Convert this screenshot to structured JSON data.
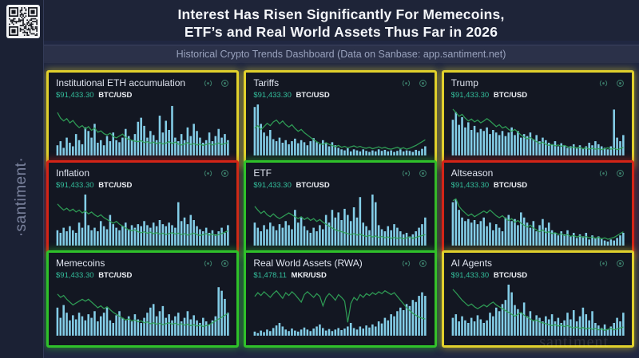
{
  "header": {
    "title_line1": "Interest Has Risen Significantly For Memecoins,",
    "title_line2": "ETF’s and Real World Assets Thus Far in 2026",
    "subtitle": "Historical Crypto Trends Dashboard (Data on Sanbase: app.santiment.net)"
  },
  "sidebar": {
    "brand": "·santiment·"
  },
  "watermark": "santiment",
  "colors": {
    "page_bg": "#202741",
    "panel_bg": "#131722",
    "accent_yellow": "#e0d02c",
    "accent_red": "#d42417",
    "accent_green": "#2fc12a",
    "bar_color": "#84cee8",
    "line_color": "#2fa157",
    "price_color": "#33bf9c"
  },
  "chart_data": {
    "note": "see panels[].bars (social-volume bars, % of max) and panels[].line (price line, % of max)"
  },
  "panels": [
    {
      "title": "Institutional ETH accumulation",
      "price": "$91,433.30",
      "unit": "BTC/USD",
      "border": "yellow",
      "icons": [
        "live-icon",
        "settings-icon"
      ],
      "type": "bar+line",
      "bars": [
        20,
        28,
        15,
        35,
        25,
        18,
        42,
        30,
        22,
        55,
        48,
        35,
        62,
        25,
        30,
        20,
        38,
        28,
        45,
        30,
        26,
        35,
        52,
        38,
        30,
        42,
        66,
        74,
        58,
        35,
        48,
        40,
        30,
        78,
        45,
        68,
        50,
        97,
        35,
        28,
        42,
        30,
        55,
        38,
        62,
        48,
        35,
        25,
        30,
        45,
        28,
        38,
        52,
        35,
        42,
        30
      ],
      "line": [
        88,
        76,
        70,
        75,
        66,
        71,
        62,
        56,
        60,
        53,
        58,
        50,
        55,
        46,
        49,
        43,
        40,
        44,
        37,
        34,
        38,
        42,
        35,
        31,
        29,
        27,
        26,
        28,
        24,
        26,
        23,
        25,
        22,
        24,
        21,
        23,
        26,
        22,
        25,
        21,
        19,
        21,
        24,
        20,
        22,
        19,
        21,
        18,
        20,
        22,
        19,
        21,
        23,
        20,
        22,
        24
      ]
    },
    {
      "title": "Tariffs",
      "price": "$91,433.30",
      "unit": "BTC/USD",
      "border": "yellow",
      "icons": [
        "live-icon",
        "settings-icon"
      ],
      "type": "bar+line",
      "bars": [
        95,
        100,
        62,
        45,
        38,
        50,
        32,
        28,
        35,
        25,
        30,
        22,
        28,
        33,
        24,
        30,
        26,
        20,
        28,
        34,
        26,
        22,
        30,
        24,
        18,
        26,
        20,
        15,
        12,
        10,
        14,
        8,
        12,
        10,
        8,
        12,
        9,
        7,
        10,
        8,
        12,
        9,
        11,
        8,
        10,
        7,
        9,
        12,
        8,
        10,
        9,
        7,
        11,
        9,
        13,
        18
      ],
      "line": [
        55,
        60,
        52,
        58,
        65,
        60,
        68,
        72,
        64,
        70,
        62,
        57,
        62,
        54,
        48,
        52,
        45,
        40,
        35,
        30,
        26,
        22,
        20,
        24,
        20,
        18,
        15,
        18,
        14,
        16,
        13,
        15,
        17,
        14,
        16,
        13,
        12,
        14,
        11,
        13,
        15,
        12,
        14,
        11,
        10,
        12,
        14,
        11,
        13,
        10,
        12,
        15,
        18,
        22,
        26,
        30
      ]
    },
    {
      "title": "Trump",
      "price": "$91,433.30",
      "unit": "BTC/USD",
      "border": "yellow",
      "icons": [
        "live-icon",
        "settings-icon"
      ],
      "type": "bar+line",
      "bars": [
        70,
        85,
        60,
        75,
        55,
        65,
        50,
        58,
        45,
        52,
        48,
        55,
        42,
        50,
        45,
        40,
        48,
        38,
        45,
        55,
        40,
        48,
        35,
        42,
        38,
        45,
        32,
        40,
        28,
        35,
        30,
        25,
        22,
        28,
        18,
        24,
        20,
        15,
        18,
        22,
        16,
        20,
        14,
        18,
        25,
        20,
        28,
        22,
        18,
        15,
        12,
        18,
        90,
        35,
        28,
        40
      ],
      "line": [
        95,
        88,
        80,
        84,
        76,
        70,
        74,
        68,
        72,
        66,
        70,
        75,
        70,
        64,
        58,
        62,
        55,
        58,
        52,
        48,
        52,
        46,
        40,
        36,
        32,
        35,
        30,
        26,
        22,
        25,
        20,
        18,
        20,
        17,
        19,
        16,
        18,
        15,
        13,
        15,
        12,
        14,
        11,
        13,
        10,
        12,
        10,
        11,
        9,
        11,
        13,
        10,
        12,
        9,
        11,
        14
      ]
    },
    {
      "title": "Inflation",
      "price": "$91,433.30",
      "unit": "BTC/USD",
      "border": "red",
      "icons": [
        "live-icon",
        "settings-icon"
      ],
      "type": "bar+line",
      "bars": [
        30,
        25,
        35,
        28,
        38,
        30,
        25,
        45,
        35,
        100,
        40,
        30,
        35,
        28,
        48,
        38,
        32,
        60,
        42,
        35,
        30,
        38,
        45,
        32,
        40,
        35,
        42,
        38,
        48,
        40,
        35,
        45,
        38,
        50,
        42,
        38,
        45,
        40,
        35,
        85,
        48,
        55,
        42,
        60,
        50,
        38,
        32,
        28,
        35,
        25,
        30,
        22,
        28,
        35,
        25,
        40
      ],
      "line": [
        85,
        78,
        72,
        76,
        70,
        74,
        68,
        72,
        66,
        70,
        64,
        68,
        62,
        58,
        62,
        56,
        52,
        48,
        44,
        48,
        42,
        38,
        34,
        30,
        28,
        30,
        26,
        24,
        26,
        23,
        25,
        22,
        24,
        21,
        23,
        20,
        22,
        24,
        21,
        23,
        20,
        22,
        19,
        21,
        23,
        20,
        18,
        20,
        22,
        19,
        21,
        18,
        20,
        22,
        25,
        28
      ]
    },
    {
      "title": "ETF",
      "price": "$91,433.30",
      "unit": "BTC/USD",
      "border": "green",
      "icons": [
        "live-icon",
        "settings-icon"
      ],
      "type": "bar+line",
      "bars": [
        45,
        35,
        28,
        40,
        32,
        45,
        38,
        30,
        42,
        35,
        48,
        40,
        32,
        70,
        45,
        55,
        38,
        30,
        25,
        35,
        28,
        40,
        32,
        60,
        45,
        70,
        55,
        65,
        50,
        72,
        60,
        48,
        75,
        55,
        95,
        45,
        38,
        30,
        100,
        85,
        40,
        32,
        28,
        38,
        30,
        42,
        35,
        28,
        22,
        25,
        18,
        22,
        28,
        35,
        42,
        55
      ],
      "line": [
        80,
        72,
        65,
        70,
        62,
        58,
        64,
        58,
        54,
        58,
        62,
        66,
        62,
        58,
        54,
        58,
        52,
        56,
        50,
        54,
        48,
        52,
        46,
        42,
        38,
        34,
        30,
        28,
        26,
        24,
        22,
        20,
        22,
        19,
        21,
        18,
        16,
        18,
        15,
        17,
        14,
        16,
        13,
        15,
        12,
        14,
        12,
        13,
        11,
        13,
        15,
        12,
        14,
        16,
        18,
        20
      ]
    },
    {
      "title": "Altseason",
      "price": "$91,433.30",
      "unit": "BTC/USD",
      "border": "red",
      "icons": [
        "live-icon",
        "settings-icon"
      ],
      "type": "bar+line",
      "bars": [
        85,
        90,
        70,
        55,
        48,
        52,
        45,
        50,
        42,
        48,
        55,
        38,
        45,
        30,
        42,
        35,
        28,
        55,
        60,
        48,
        52,
        40,
        65,
        55,
        45,
        35,
        48,
        28,
        40,
        52,
        35,
        45,
        30,
        25,
        20,
        28,
        22,
        30,
        18,
        25,
        15,
        22,
        18,
        25,
        12,
        20,
        15,
        18,
        14,
        10,
        8,
        12,
        10,
        15,
        20,
        25
      ],
      "line": [
        92,
        96,
        80,
        72,
        66,
        60,
        64,
        58,
        62,
        66,
        70,
        66,
        72,
        66,
        60,
        56,
        60,
        54,
        50,
        54,
        46,
        50,
        44,
        40,
        36,
        40,
        34,
        30,
        26,
        30,
        24,
        26,
        22,
        24,
        20,
        22,
        18,
        20,
        16,
        18,
        15,
        17,
        14,
        16,
        13,
        15,
        12,
        14,
        11,
        13,
        10,
        12,
        14,
        18,
        22,
        26
      ]
    },
    {
      "title": "Memecoins",
      "price": "$91,433.30",
      "unit": "BTC/USD",
      "border": "green",
      "icons": [
        "live-icon",
        "settings-icon"
      ],
      "type": "bar+line",
      "bars": [
        55,
        35,
        60,
        45,
        30,
        40,
        32,
        45,
        38,
        30,
        42,
        35,
        48,
        28,
        38,
        45,
        55,
        30,
        25,
        40,
        48,
        35,
        30,
        38,
        28,
        42,
        32,
        25,
        35,
        45,
        55,
        62,
        38,
        48,
        58,
        35,
        42,
        30,
        38,
        45,
        28,
        35,
        48,
        32,
        40,
        30,
        25,
        35,
        28,
        22,
        30,
        38,
        95,
        88,
        72,
        45
      ],
      "line": [
        85,
        78,
        82,
        74,
        68,
        62,
        66,
        70,
        74,
        70,
        74,
        68,
        62,
        56,
        60,
        54,
        58,
        52,
        46,
        42,
        38,
        34,
        30,
        32,
        28,
        30,
        26,
        28,
        24,
        26,
        22,
        24,
        21,
        23,
        20,
        22,
        24,
        21,
        23,
        20,
        22,
        19,
        21,
        18,
        20,
        17,
        19,
        16,
        18,
        20,
        24,
        28,
        32,
        36,
        40,
        44
      ]
    },
    {
      "title": "Real World Assets (RWA)",
      "price": "$1,478.11",
      "unit": "MKR/USD",
      "border": "green",
      "icons": [
        "live-icon",
        "settings-icon"
      ],
      "type": "bar+line",
      "bars": [
        8,
        5,
        10,
        7,
        12,
        9,
        15,
        20,
        25,
        18,
        12,
        9,
        14,
        10,
        8,
        12,
        16,
        12,
        9,
        14,
        18,
        22,
        15,
        10,
        13,
        9,
        12,
        15,
        11,
        14,
        18,
        25,
        15,
        12,
        18,
        14,
        20,
        16,
        22,
        18,
        28,
        24,
        35,
        30,
        42,
        38,
        48,
        55,
        50,
        62,
        58,
        70,
        66,
        78,
        85,
        78
      ],
      "line": [
        80,
        88,
        82,
        90,
        84,
        78,
        86,
        92,
        84,
        76,
        88,
        82,
        90,
        84,
        76,
        68,
        84,
        90,
        84,
        78,
        86,
        80,
        60,
        78,
        86,
        80,
        72,
        84,
        78,
        70,
        25,
        65,
        78,
        72,
        84,
        78,
        86,
        82,
        88,
        84,
        90,
        86,
        92,
        88,
        84,
        88,
        80,
        72,
        64,
        56,
        50,
        44,
        40,
        36,
        34,
        32
      ]
    },
    {
      "title": "AI Agents",
      "price": "$91,433.30",
      "unit": "BTC/USD",
      "border": "yellow",
      "icons": [
        "live-icon",
        "settings-icon"
      ],
      "type": "bar+line",
      "bars": [
        35,
        42,
        28,
        38,
        30,
        25,
        35,
        28,
        40,
        32,
        25,
        30,
        45,
        38,
        55,
        48,
        62,
        70,
        100,
        85,
        60,
        52,
        45,
        65,
        38,
        48,
        30,
        40,
        35,
        28,
        38,
        32,
        42,
        28,
        35,
        25,
        30,
        45,
        32,
        50,
        28,
        38,
        55,
        42,
        30,
        48,
        25,
        20,
        15,
        22,
        12,
        18,
        25,
        35,
        28,
        45
      ],
      "line": [
        95,
        88,
        80,
        72,
        66,
        60,
        64,
        58,
        54,
        58,
        62,
        58,
        64,
        68,
        62,
        58,
        54,
        50,
        46,
        42,
        38,
        42,
        46,
        40,
        36,
        32,
        28,
        30,
        26,
        24,
        22,
        20,
        18,
        20,
        17,
        19,
        16,
        18,
        15,
        13,
        15,
        12,
        14,
        11,
        13,
        10,
        12,
        9,
        11,
        8,
        10,
        12,
        9,
        11,
        13,
        15
      ]
    }
  ]
}
